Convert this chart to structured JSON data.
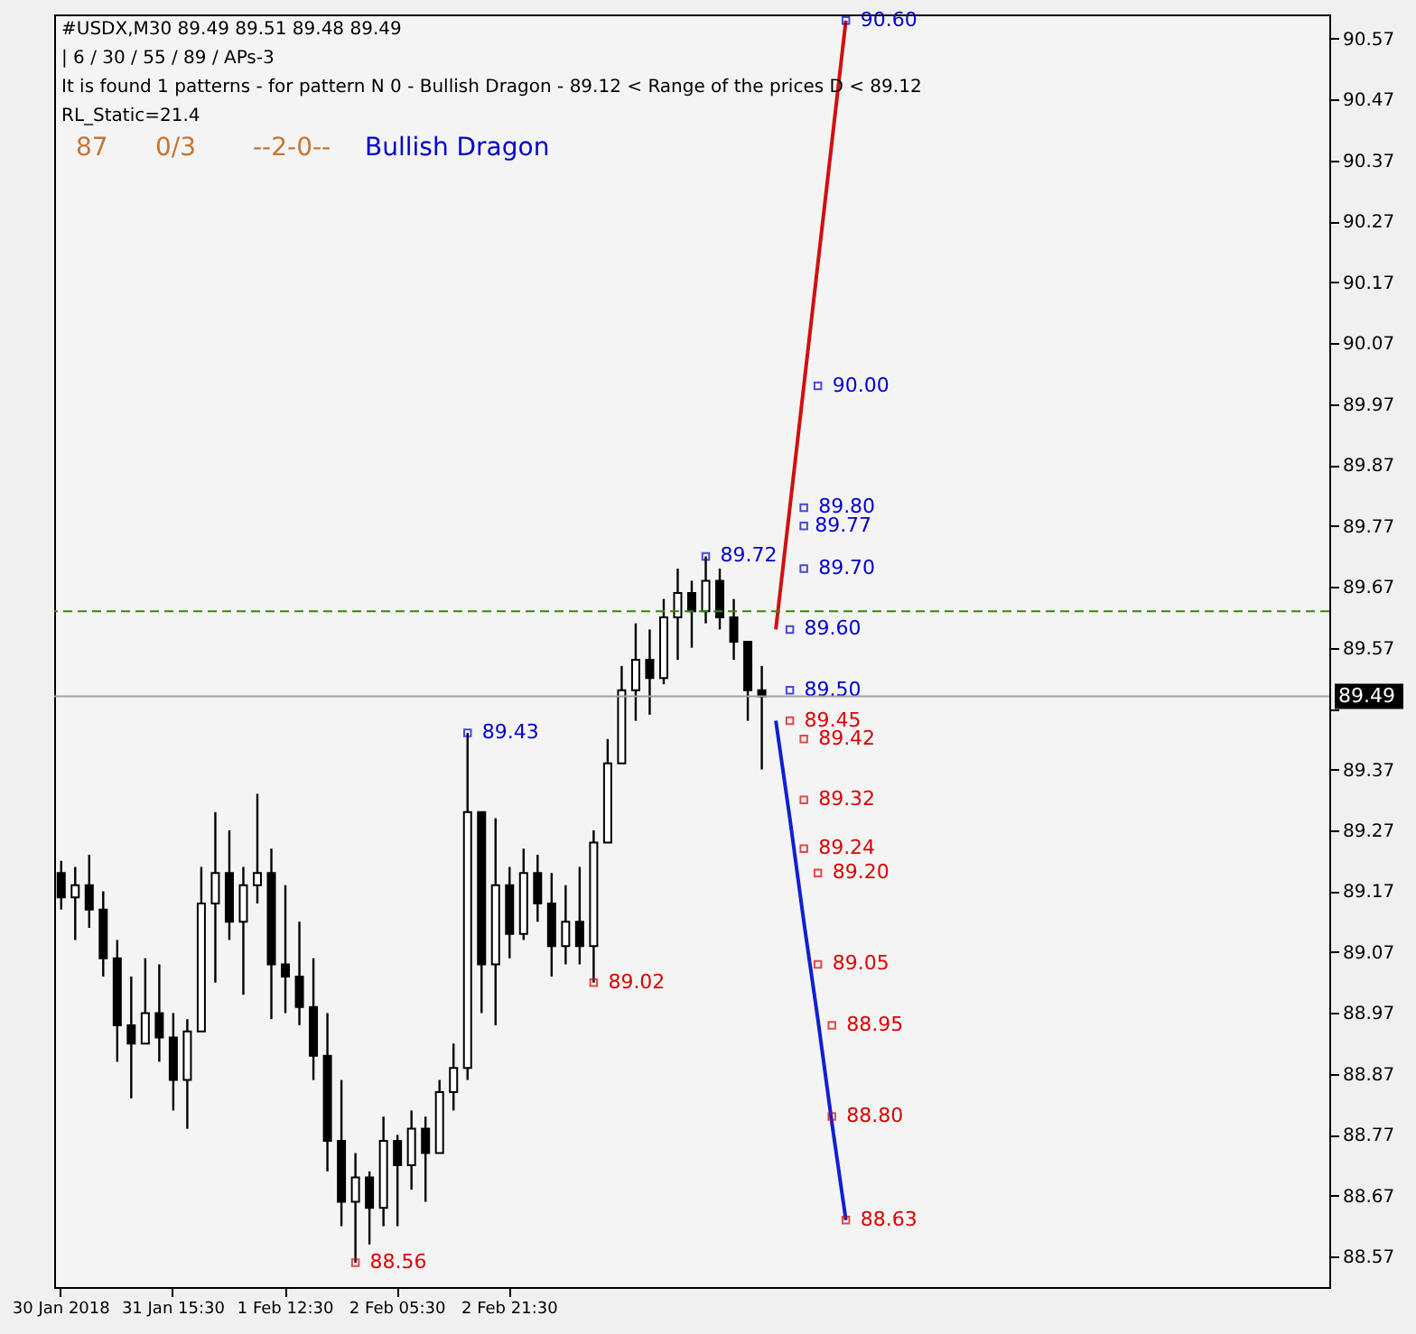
{
  "chart_data": {
    "type": "candlestick",
    "title": "#USDX,M30  89.49 89.51 89.48 89.49",
    "annotations": [
      "| 6 / 30 / 55 / 89 / APs-3",
      "It is found 1 patterns  -  for pattern N 0 - Bullish Dragon - 89.12 < Range of the prices D < 89.12",
      "RL_Static=21.4",
      "87",
      "0/3",
      "--2-0--",
      "Bullish Dragon"
    ],
    "categories": [
      "30 Jan 2018",
      null,
      null,
      null,
      null,
      null,
      null,
      null,
      "31 Jan 15:30",
      null,
      null,
      null,
      null,
      null,
      null,
      null,
      "1 Feb 12:30",
      null,
      null,
      null,
      null,
      null,
      null,
      null,
      "2 Feb 05:30",
      null,
      null,
      null,
      null,
      null,
      null,
      null,
      "2 Feb 21:30",
      null,
      null,
      null,
      null,
      null,
      null,
      null,
      null,
      null,
      null,
      null,
      null,
      null,
      null,
      null,
      null,
      null,
      null,
      null,
      null,
      null,
      null,
      null,
      null,
      null,
      null,
      null,
      null,
      null,
      null,
      null,
      null,
      null,
      null,
      null,
      null,
      null,
      null,
      null,
      null,
      null,
      null,
      null,
      null,
      null,
      null,
      null,
      null,
      null,
      null,
      null,
      null,
      null,
      null,
      null,
      null,
      null,
      null
    ],
    "color": "#000000",
    "ohlc": [
      [
        89.2,
        89.22,
        89.14,
        89.16
      ],
      [
        89.16,
        89.21,
        89.09,
        89.18
      ],
      [
        89.18,
        89.23,
        89.11,
        89.14
      ],
      [
        89.14,
        89.17,
        89.03,
        89.06
      ],
      [
        89.06,
        89.09,
        88.89,
        88.95
      ],
      [
        88.95,
        89.03,
        88.83,
        88.92
      ],
      [
        88.92,
        89.06,
        88.92,
        88.97
      ],
      [
        88.97,
        89.05,
        88.89,
        88.93
      ],
      [
        88.93,
        88.97,
        88.81,
        88.86
      ],
      [
        88.86,
        88.96,
        88.78,
        88.94
      ],
      [
        88.94,
        89.21,
        88.94,
        89.15
      ],
      [
        89.15,
        89.3,
        89.02,
        89.2
      ],
      [
        89.2,
        89.27,
        89.09,
        89.12
      ],
      [
        89.12,
        89.21,
        89.0,
        89.18
      ],
      [
        89.18,
        89.33,
        89.15,
        89.2
      ],
      [
        89.2,
        89.24,
        88.96,
        89.05
      ],
      [
        89.05,
        89.18,
        88.97,
        89.03
      ],
      [
        89.03,
        89.12,
        88.95,
        88.98
      ],
      [
        88.98,
        89.06,
        88.86,
        88.9
      ],
      [
        88.9,
        88.97,
        88.71,
        88.76
      ],
      [
        88.76,
        88.86,
        88.62,
        88.66
      ],
      [
        88.66,
        88.74,
        88.56,
        88.7
      ],
      [
        88.7,
        88.71,
        88.59,
        88.65
      ],
      [
        88.65,
        88.8,
        88.62,
        88.76
      ],
      [
        88.76,
        88.77,
        88.62,
        88.72
      ],
      [
        88.72,
        88.81,
        88.68,
        88.78
      ],
      [
        88.78,
        88.8,
        88.66,
        88.74
      ],
      [
        88.74,
        88.86,
        88.74,
        88.84
      ],
      [
        88.84,
        88.92,
        88.81,
        88.88
      ],
      [
        88.88,
        89.43,
        88.86,
        89.3
      ],
      [
        89.3,
        89.3,
        88.97,
        89.05
      ],
      [
        89.05,
        89.29,
        88.95,
        89.18
      ],
      [
        89.18,
        89.21,
        89.06,
        89.1
      ],
      [
        89.1,
        89.24,
        89.09,
        89.2
      ],
      [
        89.2,
        89.23,
        89.12,
        89.15
      ],
      [
        89.15,
        89.2,
        89.03,
        89.08
      ],
      [
        89.08,
        89.18,
        89.05,
        89.12
      ],
      [
        89.12,
        89.21,
        89.05,
        89.08
      ],
      [
        89.08,
        89.27,
        89.02,
        89.25
      ],
      [
        89.25,
        89.42,
        89.25,
        89.38
      ],
      [
        89.38,
        89.54,
        89.38,
        89.5
      ],
      [
        89.5,
        89.61,
        89.45,
        89.55
      ],
      [
        89.55,
        89.6,
        89.46,
        89.52
      ],
      [
        89.52,
        89.65,
        89.51,
        89.62
      ],
      [
        89.62,
        89.7,
        89.55,
        89.66
      ],
      [
        89.66,
        89.68,
        89.57,
        89.63
      ],
      [
        89.63,
        89.72,
        89.61,
        89.68
      ],
      [
        89.68,
        89.7,
        89.6,
        89.62
      ],
      [
        89.62,
        89.65,
        89.55,
        89.58
      ],
      [
        89.58,
        89.58,
        89.45,
        89.5
      ],
      [
        89.5,
        89.54,
        89.37,
        89.49
      ],
      null,
      null,
      null,
      null,
      null,
      null,
      null,
      null,
      null,
      null,
      null,
      null,
      null,
      null,
      null,
      null,
      null,
      null,
      null,
      null,
      null,
      null,
      null,
      null,
      null,
      null,
      null,
      null,
      null,
      null,
      null,
      null,
      null,
      null,
      null,
      null,
      null,
      null,
      null,
      null
    ],
    "series": [
      {
        "type": "line",
        "color": "#d01010",
        "values": [
          null,
          null,
          null,
          null,
          null,
          null,
          null,
          null,
          null,
          null,
          null,
          null,
          null,
          null,
          null,
          null,
          null,
          null,
          null,
          null,
          null,
          null,
          null,
          null,
          null,
          null,
          null,
          null,
          null,
          null,
          null,
          null,
          null,
          null,
          null,
          null,
          null,
          null,
          null,
          null,
          null,
          null,
          null,
          null,
          null,
          null,
          null,
          null,
          null,
          null,
          null,
          89.6,
          89.8,
          90.0,
          90.2,
          90.4,
          90.6,
          null,
          null,
          null,
          null,
          null,
          null,
          null,
          null,
          null,
          null,
          null,
          null,
          null,
          null,
          null,
          null,
          null,
          null,
          null,
          null,
          null,
          null,
          null,
          null,
          null,
          null,
          null,
          null,
          null,
          null,
          null,
          null,
          null,
          null
        ]
      },
      {
        "type": "line",
        "color": "#1020d0",
        "values": [
          null,
          null,
          null,
          null,
          null,
          null,
          null,
          null,
          null,
          null,
          null,
          null,
          null,
          null,
          null,
          null,
          null,
          null,
          null,
          null,
          null,
          null,
          null,
          null,
          null,
          null,
          null,
          null,
          null,
          null,
          null,
          null,
          null,
          null,
          null,
          null,
          null,
          null,
          null,
          null,
          null,
          null,
          null,
          null,
          null,
          null,
          null,
          null,
          null,
          null,
          null,
          89.45,
          89.29,
          89.12,
          88.96,
          88.79,
          88.63,
          null,
          null,
          null,
          null,
          null,
          null,
          null,
          null,
          null,
          null,
          null,
          null,
          null,
          null,
          null,
          null,
          null,
          null,
          null,
          null,
          null,
          null,
          null,
          null,
          null,
          null,
          null,
          null,
          null,
          null,
          null,
          null,
          null,
          null
        ]
      },
      {
        "type": "scatter",
        "color": "#0000cc",
        "value_labels": [
          null,
          null,
          null,
          null,
          null,
          null,
          null,
          null,
          null,
          null,
          null,
          null,
          null,
          null,
          null,
          null,
          null,
          null,
          null,
          null,
          null,
          null,
          null,
          null,
          null,
          null,
          null,
          null,
          null,
          "89.43",
          null,
          null,
          null,
          null,
          null,
          null,
          null,
          null,
          null,
          null,
          null,
          null,
          null,
          null,
          null,
          null,
          "89.72",
          null,
          null,
          null,
          null,
          null,
          "89.50",
          "89.70",
          "90.00",
          null,
          "90.60",
          null,
          null,
          null,
          null,
          null,
          null,
          null,
          null,
          null,
          null,
          null,
          null,
          null,
          null,
          null,
          null,
          null,
          null,
          null,
          null,
          null,
          null,
          null,
          null,
          null,
          null,
          null,
          null,
          null,
          null,
          null,
          null,
          null,
          null
        ],
        "values": [
          null,
          null,
          null,
          null,
          null,
          null,
          null,
          null,
          null,
          null,
          null,
          null,
          null,
          null,
          null,
          null,
          null,
          null,
          null,
          null,
          null,
          null,
          null,
          null,
          null,
          null,
          null,
          null,
          null,
          89.43,
          null,
          null,
          null,
          null,
          null,
          null,
          null,
          null,
          null,
          null,
          null,
          null,
          null,
          null,
          null,
          null,
          89.72,
          null,
          null,
          null,
          null,
          null,
          89.5,
          89.7,
          90.0,
          null,
          90.6,
          null,
          null,
          null,
          null,
          null,
          null,
          null,
          null,
          null,
          null,
          null,
          null,
          null,
          null,
          null,
          null,
          null,
          null,
          null,
          null,
          null,
          null,
          null,
          null,
          null,
          null,
          null,
          null,
          null,
          null,
          null,
          null,
          null,
          null
        ]
      },
      {
        "type": "scatter",
        "color": "#0000cc",
        "value_labels": [
          null,
          null,
          null,
          null,
          null,
          null,
          null,
          null,
          null,
          null,
          null,
          null,
          null,
          null,
          null,
          null,
          null,
          null,
          null,
          null,
          null,
          null,
          null,
          null,
          null,
          null,
          null,
          null,
          null,
          null,
          null,
          null,
          null,
          null,
          null,
          null,
          null,
          null,
          null,
          null,
          null,
          null,
          null,
          null,
          null,
          null,
          null,
          null,
          null,
          null,
          null,
          null,
          "89.60",
          "89.80",
          null,
          null,
          null,
          null,
          null,
          null,
          null,
          null,
          null,
          null,
          null,
          null,
          null,
          null,
          null,
          null,
          null,
          null,
          null,
          null,
          null,
          null,
          null,
          null,
          null,
          null,
          null,
          null,
          null,
          null,
          null,
          null,
          null,
          null,
          null,
          null,
          null
        ],
        "values": [
          null,
          null,
          null,
          null,
          null,
          null,
          null,
          null,
          null,
          null,
          null,
          null,
          null,
          null,
          null,
          null,
          null,
          null,
          null,
          null,
          null,
          null,
          null,
          null,
          null,
          null,
          null,
          null,
          null,
          null,
          null,
          null,
          null,
          null,
          null,
          null,
          null,
          null,
          null,
          null,
          null,
          null,
          null,
          null,
          null,
          null,
          null,
          null,
          null,
          null,
          null,
          null,
          89.6,
          89.8,
          null,
          null,
          null,
          null,
          null,
          null,
          null,
          null,
          null,
          null,
          null,
          null,
          null,
          null,
          null,
          null,
          null,
          null,
          null,
          null,
          null,
          null,
          null,
          null,
          null,
          null,
          null,
          null,
          null,
          null,
          null,
          null,
          null,
          null,
          null,
          null,
          null
        ]
      },
      {
        "type": "scatter",
        "color": "#0000cc",
        "data_labels": true,
        "values": [
          null,
          null,
          null,
          null,
          null,
          null,
          null,
          null,
          null,
          null,
          null,
          null,
          null,
          null,
          null,
          null,
          null,
          null,
          null,
          null,
          null,
          null,
          null,
          null,
          null,
          null,
          null,
          null,
          null,
          null,
          null,
          null,
          null,
          null,
          null,
          null,
          null,
          null,
          null,
          null,
          null,
          null,
          null,
          null,
          null,
          null,
          null,
          null,
          null,
          null,
          null,
          null,
          null,
          89.77,
          null,
          null,
          null,
          null,
          null,
          null,
          null,
          null,
          null,
          null,
          null,
          null,
          null,
          null,
          null,
          null,
          null,
          null,
          null,
          null,
          null,
          null,
          null,
          null,
          null,
          null,
          null,
          null,
          null,
          null,
          null,
          null,
          null,
          null,
          null,
          null,
          null
        ]
      },
      {
        "type": "scatter",
        "color": "#dd0000",
        "value_labels": [
          null,
          null,
          null,
          null,
          null,
          null,
          null,
          null,
          null,
          null,
          null,
          null,
          null,
          null,
          null,
          null,
          null,
          null,
          null,
          null,
          null,
          "88.56",
          null,
          null,
          null,
          null,
          null,
          null,
          null,
          null,
          null,
          null,
          null,
          null,
          null,
          null,
          null,
          null,
          "89.02",
          null,
          null,
          null,
          null,
          null,
          null,
          null,
          null,
          null,
          null,
          null,
          null,
          null,
          "89.45",
          "89.32",
          "89.05",
          "88.80",
          "88.63",
          null,
          null,
          null,
          null,
          null,
          null,
          null,
          null,
          null,
          null,
          null,
          null,
          null,
          null,
          null,
          null,
          null,
          null,
          null,
          null,
          null,
          null,
          null,
          null,
          null,
          null,
          null,
          null,
          null,
          null,
          null,
          null,
          null,
          null
        ],
        "values": [
          null,
          null,
          null,
          null,
          null,
          null,
          null,
          null,
          null,
          null,
          null,
          null,
          null,
          null,
          null,
          null,
          null,
          null,
          null,
          null,
          null,
          88.56,
          null,
          null,
          null,
          null,
          null,
          null,
          null,
          null,
          null,
          null,
          null,
          null,
          null,
          null,
          null,
          null,
          89.02,
          null,
          null,
          null,
          null,
          null,
          null,
          null,
          null,
          null,
          null,
          null,
          null,
          null,
          89.45,
          89.32,
          89.05,
          88.8,
          88.63,
          null,
          null,
          null,
          null,
          null,
          null,
          null,
          null,
          null,
          null,
          null,
          null,
          null,
          null,
          null,
          null,
          null,
          null,
          null,
          null,
          null,
          null,
          null,
          null,
          null,
          null,
          null,
          null,
          null,
          null,
          null,
          null,
          null,
          null
        ]
      },
      {
        "type": "scatter",
        "color": "#dd0000",
        "value_labels": [
          null,
          null,
          null,
          null,
          null,
          null,
          null,
          null,
          null,
          null,
          null,
          null,
          null,
          null,
          null,
          null,
          null,
          null,
          null,
          null,
          null,
          null,
          null,
          null,
          null,
          null,
          null,
          null,
          null,
          null,
          null,
          null,
          null,
          null,
          null,
          null,
          null,
          null,
          null,
          null,
          null,
          null,
          null,
          null,
          null,
          null,
          null,
          null,
          null,
          null,
          null,
          null,
          null,
          "89.42",
          "89.20",
          "88.95",
          null,
          null,
          null,
          null,
          null,
          null,
          null,
          null,
          null,
          null,
          null,
          null,
          null,
          null,
          null,
          null,
          null,
          null,
          null,
          null,
          null,
          null,
          null,
          null,
          null,
          null,
          null,
          null,
          null,
          null,
          null,
          null,
          null,
          null,
          null
        ],
        "values": [
          null,
          null,
          null,
          null,
          null,
          null,
          null,
          null,
          null,
          null,
          null,
          null,
          null,
          null,
          null,
          null,
          null,
          null,
          null,
          null,
          null,
          null,
          null,
          null,
          null,
          null,
          null,
          null,
          null,
          null,
          null,
          null,
          null,
          null,
          null,
          null,
          null,
          null,
          null,
          null,
          null,
          null,
          null,
          null,
          null,
          null,
          null,
          null,
          null,
          null,
          null,
          null,
          null,
          89.42,
          89.2,
          88.95,
          null,
          null,
          null,
          null,
          null,
          null,
          null,
          null,
          null,
          null,
          null,
          null,
          null,
          null,
          null,
          null,
          null,
          null,
          null,
          null,
          null,
          null,
          null,
          null,
          null,
          null,
          null,
          null,
          null,
          null,
          null,
          null,
          null,
          null,
          null
        ]
      },
      {
        "type": "scatter",
        "color": "#dd0000",
        "value_labels": [
          null,
          null,
          null,
          null,
          null,
          null,
          null,
          null,
          null,
          null,
          null,
          null,
          null,
          null,
          null,
          null,
          null,
          null,
          null,
          null,
          null,
          null,
          null,
          null,
          null,
          null,
          null,
          null,
          null,
          null,
          null,
          null,
          null,
          null,
          null,
          null,
          null,
          null,
          null,
          null,
          null,
          null,
          null,
          null,
          null,
          null,
          null,
          null,
          null,
          null,
          null,
          null,
          null,
          "89.24",
          null,
          null,
          null,
          null,
          null,
          null,
          null,
          null,
          null,
          null,
          null,
          null,
          null,
          null,
          null,
          null,
          null,
          null,
          null,
          null,
          null,
          null,
          null,
          null,
          null,
          null,
          null,
          null,
          null,
          null,
          null,
          null,
          null,
          null,
          null,
          null,
          null
        ],
        "values": [
          null,
          null,
          null,
          null,
          null,
          null,
          null,
          null,
          null,
          null,
          null,
          null,
          null,
          null,
          null,
          null,
          null,
          null,
          null,
          null,
          null,
          null,
          null,
          null,
          null,
          null,
          null,
          null,
          null,
          null,
          null,
          null,
          null,
          null,
          null,
          null,
          null,
          null,
          null,
          null,
          null,
          null,
          null,
          null,
          null,
          null,
          null,
          null,
          null,
          null,
          null,
          null,
          null,
          89.24,
          null,
          null,
          null,
          null,
          null,
          null,
          null,
          null,
          null,
          null,
          null,
          null,
          null,
          null,
          null,
          null,
          null,
          null,
          null,
          null,
          null,
          null,
          null,
          null,
          null,
          null,
          null,
          null,
          null,
          null,
          null,
          null,
          null,
          null,
          null,
          null,
          null
        ]
      }
    ],
    "ylim": [
      88.52,
      90.61
    ],
    "yticks": [
      88.57,
      88.67,
      88.77,
      88.87,
      88.97,
      89.07,
      89.17,
      89.27,
      89.37,
      {
        "value": 89.47,
        "label": null
      },
      89.57,
      89.67,
      89.77,
      89.87,
      89.97,
      90.07,
      90.17,
      90.27,
      90.37,
      90.47,
      90.57
    ],
    "ref_lines": [
      {
        "axis": "y",
        "value": 89.49,
        "label": "89.49",
        "color": "#a0a0a0",
        "line_style": "solid"
      },
      {
        "axis": "y",
        "value": 89.63,
        "label": null,
        "color": "#2e8b00",
        "line_style": "dashed"
      }
    ]
  }
}
